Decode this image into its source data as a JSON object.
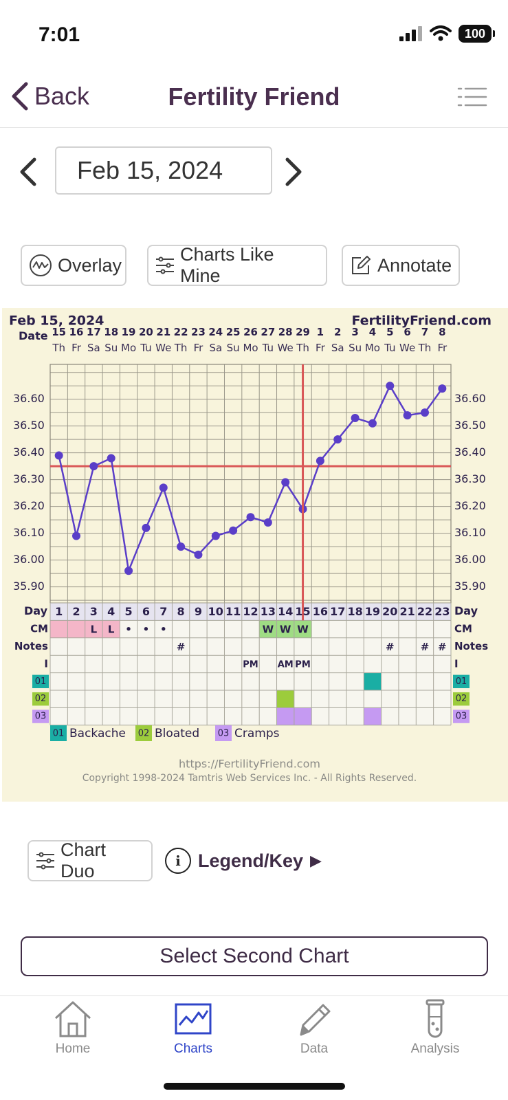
{
  "status_bar": {
    "time": "7:01",
    "battery": "100"
  },
  "nav": {
    "back_label": "Back",
    "title": "Fertility Friend"
  },
  "date_selector": {
    "date": "Feb 15, 2024"
  },
  "actions": {
    "overlay": "Overlay",
    "charts_like_mine": "Charts Like Mine",
    "annotate": "Annotate"
  },
  "chart": {
    "header_date": "Feb 15, 2024",
    "site": "FertilityFriend.com",
    "date_label": "Date",
    "dates": [
      "15",
      "16",
      "17",
      "18",
      "19",
      "20",
      "21",
      "22",
      "23",
      "24",
      "25",
      "26",
      "27",
      "28",
      "29",
      "1",
      "2",
      "3",
      "4",
      "5",
      "6",
      "7",
      "8"
    ],
    "weekdays": [
      "Th",
      "Fr",
      "Sa",
      "Su",
      "Mo",
      "Tu",
      "We",
      "Th",
      "Fr",
      "Sa",
      "Su",
      "Mo",
      "Tu",
      "We",
      "Th",
      "Fr",
      "Sa",
      "Su",
      "Mo",
      "Tu",
      "We",
      "Th",
      "Fr"
    ],
    "day_label": "Day",
    "cycle_days": [
      "1",
      "2",
      "3",
      "4",
      "5",
      "6",
      "7",
      "8",
      "9",
      "10",
      "11",
      "12",
      "13",
      "14",
      "15",
      "16",
      "17",
      "18",
      "19",
      "20",
      "21",
      "22",
      "23"
    ],
    "row_labels": {
      "cm": "CM",
      "notes": "Notes",
      "intercourse": "I"
    },
    "cm_row": [
      "",
      "",
      "L",
      "L",
      "•",
      "•",
      "•",
      "",
      "",
      "",
      "",
      "",
      "W",
      "W",
      "W",
      "",
      "",
      "",
      "",
      "",
      "",
      "",
      ""
    ],
    "notes_row": [
      "",
      "",
      "",
      "",
      "",
      "",
      "",
      "#",
      "",
      "",
      "",
      "",
      "",
      "",
      "",
      "",
      "",
      "",
      "",
      "#",
      "",
      "#",
      "#"
    ],
    "intercourse_row": [
      "",
      "",
      "",
      "",
      "",
      "",
      "",
      "",
      "",
      "",
      "",
      "PM",
      "",
      "AM",
      "PM",
      "",
      "",
      "",
      "",
      "",
      "",
      "",
      ""
    ],
    "symptom_codes": [
      "01",
      "02",
      "03"
    ],
    "legend": [
      {
        "code": "01",
        "label": "Backache",
        "color": "#1aaea4"
      },
      {
        "code": "02",
        "label": "Bloated",
        "color": "#9ccc3c"
      },
      {
        "code": "03",
        "label": "Cramps",
        "color": "#c59af2"
      }
    ],
    "footer_url": "https://FertilityFriend.com",
    "footer_copyright": "Copyright 1998-2024 Tamtris Web Services Inc. - All Rights Reserved."
  },
  "chart_data": {
    "type": "line",
    "x": [
      "15",
      "16",
      "17",
      "18",
      "19",
      "20",
      "21",
      "22",
      "23",
      "24",
      "25",
      "26",
      "27",
      "28",
      "29",
      "1",
      "2",
      "3",
      "4",
      "5",
      "6",
      "7",
      "8"
    ],
    "series": [
      {
        "values": [
          36.39,
          36.09,
          36.35,
          36.38,
          35.96,
          36.12,
          36.27,
          36.05,
          36.02,
          36.09,
          36.11,
          36.16,
          36.14,
          36.29,
          36.19,
          36.37,
          36.45,
          36.53,
          36.51,
          36.65,
          36.54,
          36.55,
          36.64
        ]
      }
    ],
    "y_ticks": [
      "36.60",
      "36.50",
      "36.40",
      "36.30",
      "36.20",
      "36.10",
      "36.00",
      "35.90"
    ],
    "ylim": [
      35.84,
      36.73
    ],
    "coverline": 36.35,
    "ovulation_day": 15,
    "menstruation_days": [
      1,
      2,
      3,
      4
    ],
    "cm_green_days": [
      13,
      14,
      15
    ],
    "symptoms": {
      "01": [
        19
      ],
      "02": [
        14
      ],
      "03": [
        14,
        15,
        19
      ]
    },
    "colors": {
      "line": "#5a3ec8",
      "reference": "#d95757",
      "panel": "#f8f4dc",
      "menstruation": "#f4b6c8"
    }
  },
  "bottom": {
    "chart_duo": "Chart Duo",
    "legend_key": "Legend/Key",
    "legend_arrow": "▶",
    "select_second": "Select Second Chart"
  },
  "tabs": [
    {
      "label": "Home",
      "icon": "home-icon",
      "active": false
    },
    {
      "label": "Charts",
      "icon": "chart-icon",
      "active": true
    },
    {
      "label": "Data",
      "icon": "pencil-icon",
      "active": false
    },
    {
      "label": "Analysis",
      "icon": "test-tube-icon",
      "active": false
    }
  ]
}
